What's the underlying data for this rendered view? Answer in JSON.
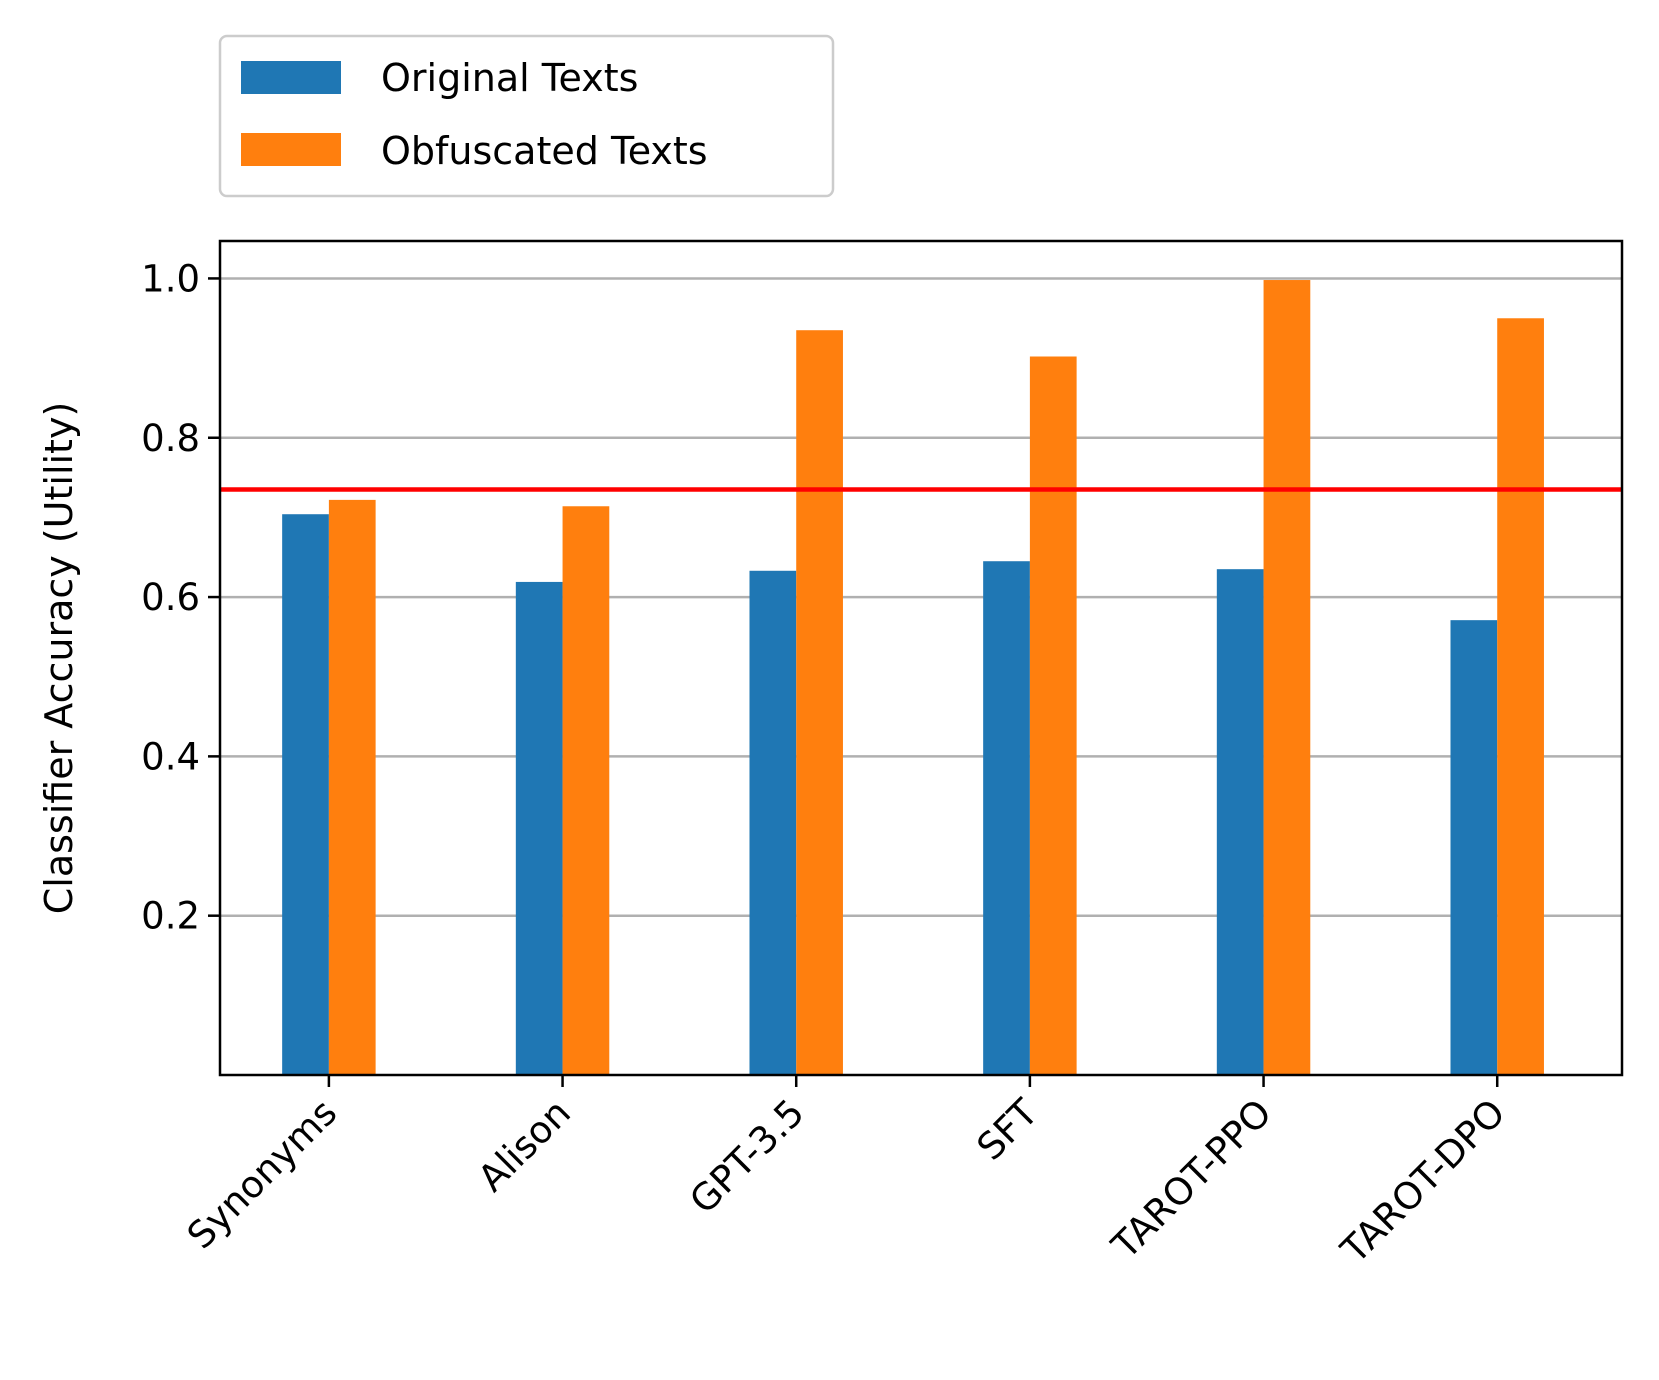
{
  "chart_data": {
    "type": "bar",
    "categories": [
      "Synonyms",
      "Alison",
      "GPT-3.5",
      "SFT",
      "TAROT-PPO",
      "TAROT-DPO"
    ],
    "series": [
      {
        "name": "Original Texts",
        "color": "#1f77b4",
        "values": [
          0.704,
          0.619,
          0.633,
          0.645,
          0.635,
          0.571
        ]
      },
      {
        "name": "Obfuscated Texts",
        "color": "#ff7f0e",
        "values": [
          0.722,
          0.714,
          0.935,
          0.902,
          0.998,
          0.95
        ]
      }
    ],
    "reference_line": {
      "value": 0.735,
      "color": "#ff0000"
    },
    "ylabel": "Classifier Accuracy (Utility)",
    "xlabel": "",
    "ylim": [
      0.0,
      1.047
    ],
    "yticks": [
      0.2,
      0.4,
      0.6,
      0.8,
      1.0
    ],
    "ytick_labels": [
      "0.2",
      "0.4",
      "0.6",
      "0.8",
      "1.0"
    ],
    "grid": "y",
    "legend_position": "top-left, above plot",
    "gridline_color": "#b0b0b0"
  }
}
